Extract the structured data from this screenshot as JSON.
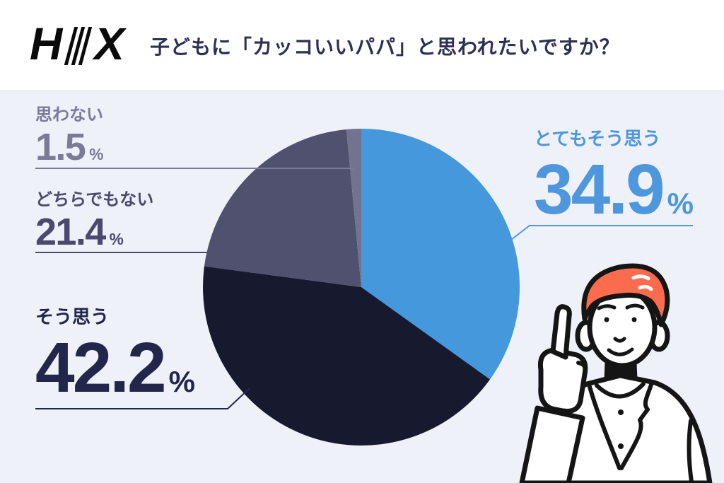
{
  "header": {
    "logo": {
      "left": "H",
      "right": "X"
    },
    "title": "子どもに「カッコいいパパ」と思われたいですか？"
  },
  "chart_data": {
    "type": "pie",
    "title": "子どもに「カッコいいパパ」と思われたいですか？",
    "categories": [
      "とてもそう思う",
      "そう思う",
      "どちらでもない",
      "思わない"
    ],
    "values": [
      34.9,
      42.2,
      21.4,
      1.5
    ],
    "unit": "%",
    "colors": [
      "#4498db",
      "#171a2e",
      "#50506f",
      "#73738f"
    ],
    "label_colors": [
      "#4e97dc",
      "#23264a",
      "#4a4a6e",
      "#7b7b99"
    ],
    "start_angle_deg": 0,
    "direction": "clockwise",
    "legend_position": "callout-labels",
    "background": "#eef1f8"
  },
  "illustration": {
    "description": "man-pointing-up",
    "hair_color": "#fb6c4f",
    "line_color": "#151515"
  }
}
